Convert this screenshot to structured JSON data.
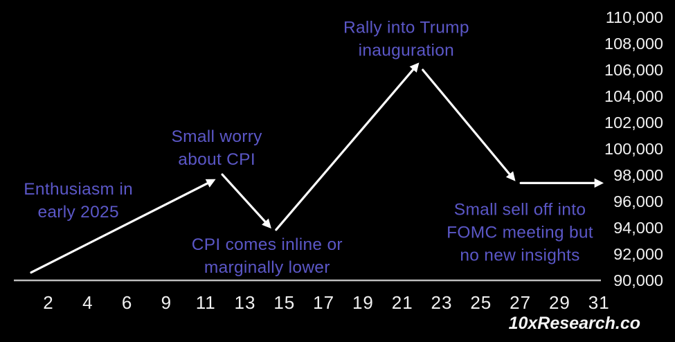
{
  "watermark": "10xResearch.co",
  "colors": {
    "background": "#000000",
    "annotation_text": "#5b57c7",
    "axis_text": "#f1f1f1",
    "axis_line": "#bdbdbd",
    "arrow": "#ffffff"
  },
  "chart_data": {
    "type": "line",
    "description": "Hand-sketched Bitcoin price scenario for January 2025 drawn as white arrow segments with purple annotations; y-axis on right in USD, x-axis is day of January.",
    "x_axis": {
      "tick_labels": [
        "2",
        "4",
        "6",
        "9",
        "11",
        "13",
        "15",
        "17",
        "19",
        "21",
        "23",
        "25",
        "27",
        "29",
        "31"
      ],
      "unit": "day of January",
      "gridlines": false
    },
    "y_axis": {
      "tick_labels": [
        "110,000",
        "108,000",
        "106,000",
        "104,000",
        "102,000",
        "100,000",
        "98,000",
        "96,000",
        "94,000",
        "92,000",
        "90,000"
      ],
      "max": 110000,
      "min": 90000,
      "step": 2000,
      "position": "right",
      "gridlines": false
    },
    "segments": [
      {
        "from": {
          "x_index": -0.44,
          "price": 90600
        },
        "to": {
          "x_index": 4.19,
          "price": 97600
        }
      },
      {
        "from": {
          "x_index": 4.42,
          "price": 98050
        },
        "to": {
          "x_index": 5.62,
          "price": 94100
        }
      },
      {
        "from": {
          "x_index": 5.79,
          "price": 93850
        },
        "to": {
          "x_index": 9.38,
          "price": 106400
        }
      },
      {
        "from": {
          "x_index": 9.52,
          "price": 106000
        },
        "to": {
          "x_index": 11.83,
          "price": 97700
        }
      },
      {
        "from": {
          "x_index": 12.01,
          "price": 97400
        },
        "to": {
          "x_index": 14.05,
          "price": 97400
        }
      }
    ],
    "annotations": [
      {
        "lines": [
          "Enthusiasm in",
          "early 2025"
        ],
        "x_index": 0.76,
        "price": 96100
      },
      {
        "lines": [
          "Small worry",
          "about CPI"
        ],
        "x_index": 4.28,
        "price": 100100
      },
      {
        "lines": [
          "CPI comes inline or",
          "marginally lower"
        ],
        "x_index": 5.56,
        "price": 91900
      },
      {
        "lines": [
          "Rally into Trump",
          "inauguration"
        ],
        "x_index": 9.1,
        "price": 108400
      },
      {
        "lines": [
          "Small sell off into",
          "FOMC meeting but",
          "no new insights"
        ],
        "x_index": 11.99,
        "price": 93700
      }
    ]
  }
}
